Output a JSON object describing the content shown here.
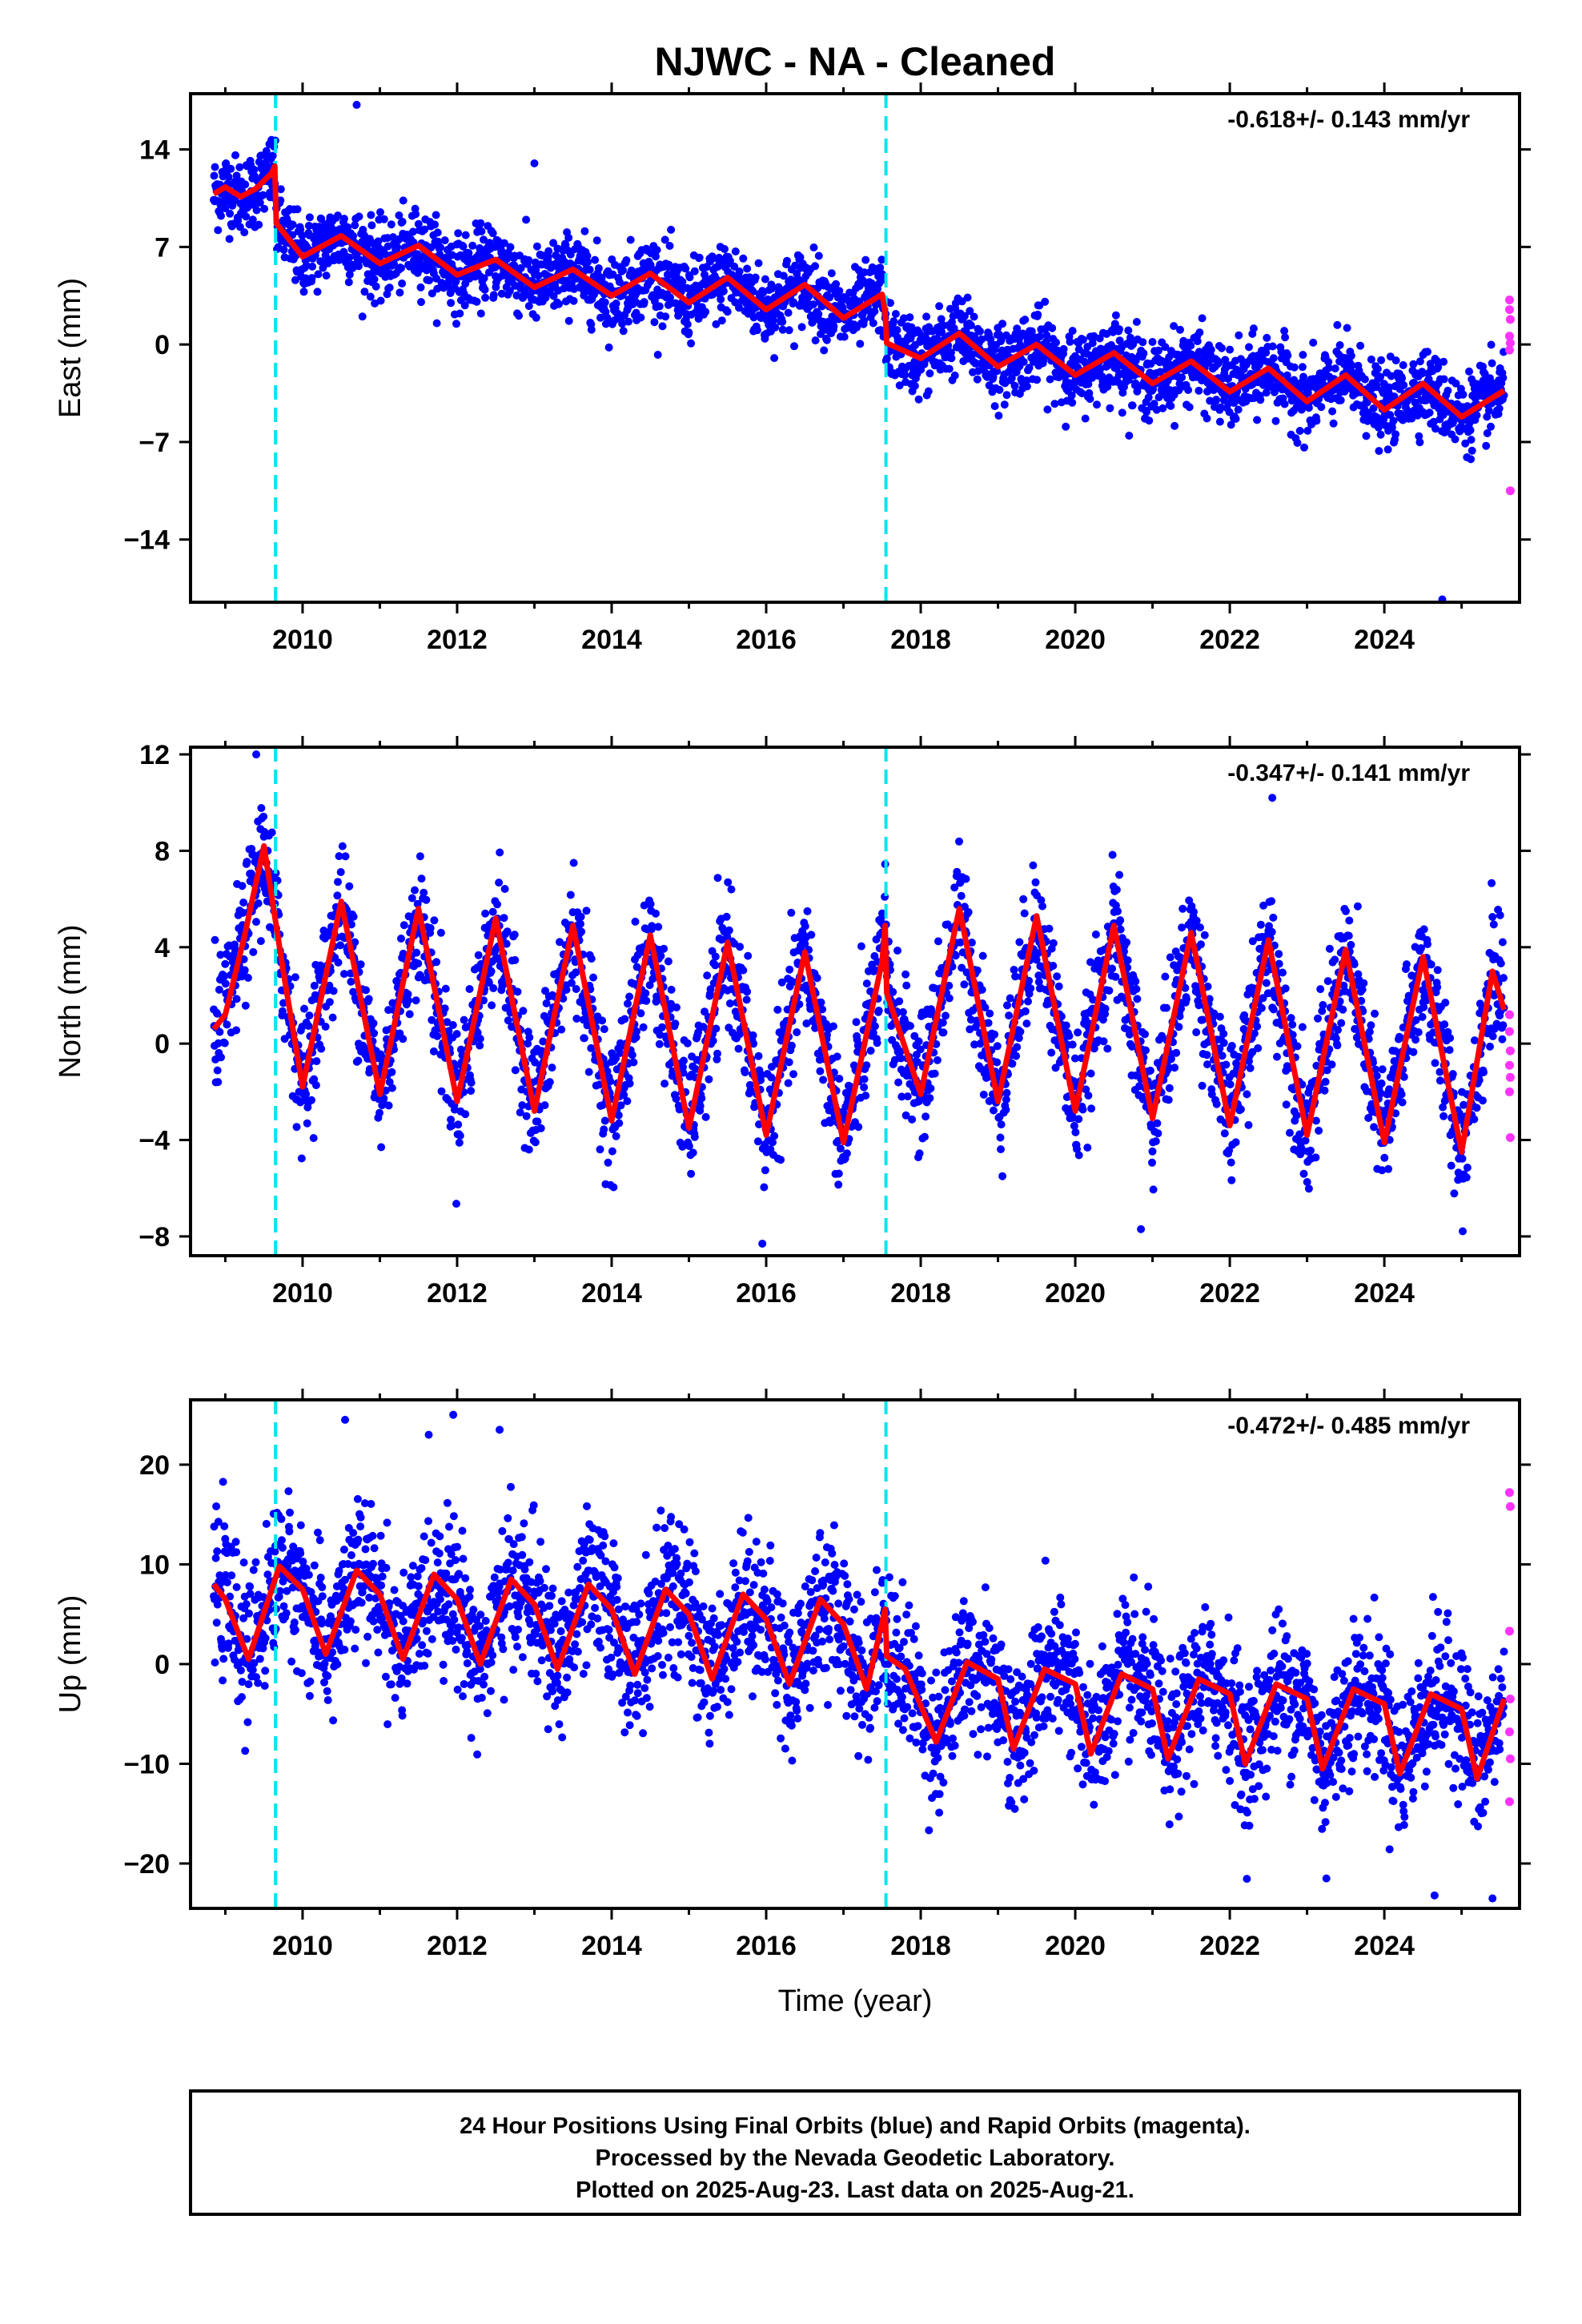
{
  "title": "NJWC  - NA - Cleaned",
  "colors": {
    "final_orbits": "#0000ff",
    "rapid_orbits": "#ff33ff",
    "model_fit": "#ff0000",
    "equipment_change": "#00e5ee",
    "frame": "#000000"
  },
  "footer": {
    "line1": "24 Hour Positions Using Final Orbits (blue) and Rapid Orbits (magenta).",
    "line2": "Processed by the Nevada Geodetic Laboratory.",
    "line3": "Plotted on 2025-Aug-23. Last data on 2025-Aug-21."
  },
  "chart_data": [
    {
      "type": "scatter",
      "component": "East",
      "ylabel": "East (mm)",
      "xlabel": "",
      "annotation": "-0.618+/- 0.143 mm/yr",
      "xlim": [
        2008.55,
        2025.75
      ],
      "ylim": [
        -18.5,
        18
      ],
      "xticks": [
        2010,
        2012,
        2014,
        2016,
        2018,
        2020,
        2022,
        2024
      ],
      "yticks": [
        -14,
        -7,
        0,
        7,
        14
      ],
      "x_range_data": [
        2008.85,
        2025.55
      ],
      "equipment_changes": [
        2009.65,
        2017.55
      ],
      "trend_rate_mm_per_yr": -0.618,
      "model_fit": {
        "x": [
          2008.85,
          2009.0,
          2009.2,
          2009.4,
          2009.6,
          2009.64,
          2009.66,
          2010.0,
          2010.5,
          2011.0,
          2011.5,
          2012.0,
          2012.5,
          2013.0,
          2013.5,
          2014.0,
          2014.5,
          2015.0,
          2015.5,
          2016.0,
          2016.5,
          2017.0,
          2017.5,
          2017.54,
          2017.56,
          2018.0,
          2018.5,
          2019.0,
          2019.5,
          2020.0,
          2020.5,
          2021.0,
          2021.5,
          2022.0,
          2022.5,
          2023.0,
          2023.5,
          2024.0,
          2024.5,
          2025.0,
          2025.55
        ],
        "y": [
          10.8,
          11.3,
          10.6,
          11.2,
          12.3,
          12.8,
          8.7,
          6.3,
          7.8,
          5.8,
          7.1,
          5.0,
          6.1,
          4.1,
          5.4,
          3.5,
          5.1,
          3.0,
          4.8,
          2.5,
          4.3,
          1.9,
          3.6,
          2.3,
          0.1,
          -1.0,
          0.8,
          -1.6,
          0.0,
          -2.2,
          -0.6,
          -2.8,
          -1.2,
          -3.4,
          -1.7,
          -4.1,
          -2.2,
          -4.7,
          -2.8,
          -5.2,
          -3.3
        ]
      },
      "rapid_orbit_points": [
        {
          "x": 2025.62,
          "y": 3.2
        },
        {
          "x": 2025.62,
          "y": 2.5
        },
        {
          "x": 2025.63,
          "y": 1.8
        },
        {
          "x": 2025.62,
          "y": 0.6
        },
        {
          "x": 2025.63,
          "y": 0.1
        },
        {
          "x": 2025.62,
          "y": -0.4
        },
        {
          "x": 2025.63,
          "y": -10.5
        }
      ],
      "outlier_points": [
        {
          "x": 2010.7,
          "y": 17.2
        },
        {
          "x": 2013.0,
          "y": 13.0
        },
        {
          "x": 2024.75,
          "y": -18.3
        }
      ]
    },
    {
      "type": "scatter",
      "component": "North",
      "ylabel": "North (mm)",
      "xlabel": "",
      "annotation": "-0.347+/- 0.141 mm/yr",
      "xlim": [
        2008.55,
        2025.75
      ],
      "ylim": [
        -8.8,
        12.3
      ],
      "xticks": [
        2010,
        2012,
        2014,
        2016,
        2018,
        2020,
        2022,
        2024
      ],
      "yticks": [
        -8,
        -4,
        0,
        4,
        8,
        12
      ],
      "x_range_data": [
        2008.85,
        2025.55
      ],
      "equipment_changes": [
        2009.65,
        2017.55
      ],
      "trend_rate_mm_per_yr": -0.347,
      "model_fit": {
        "x": [
          2008.85,
          2009.0,
          2009.25,
          2009.5,
          2009.75,
          2010.0,
          2010.5,
          2011.0,
          2011.5,
          2012.0,
          2012.5,
          2013.0,
          2013.5,
          2014.0,
          2014.5,
          2015.0,
          2015.5,
          2016.0,
          2016.5,
          2017.0,
          2017.5,
          2017.54,
          2017.56,
          2018.0,
          2018.5,
          2019.0,
          2019.5,
          2020.0,
          2020.5,
          2021.0,
          2021.5,
          2022.0,
          2022.5,
          2023.0,
          2023.5,
          2024.0,
          2024.5,
          2025.0,
          2025.4,
          2025.55
        ],
        "y": [
          0.6,
          1.2,
          4.5,
          8.2,
          3.0,
          -1.8,
          5.9,
          -2.1,
          5.6,
          -2.4,
          5.2,
          -2.8,
          4.9,
          -3.2,
          4.5,
          -3.5,
          4.2,
          -3.8,
          3.8,
          -4.1,
          3.4,
          4.9,
          2.1,
          -2.1,
          5.6,
          -2.4,
          5.3,
          -2.8,
          4.9,
          -3.1,
          4.6,
          -3.4,
          4.3,
          -3.8,
          3.9,
          -4.1,
          3.6,
          -4.5,
          3.0,
          1.4
        ]
      },
      "rapid_orbit_points": [
        {
          "x": 2025.62,
          "y": 1.2
        },
        {
          "x": 2025.62,
          "y": 0.5
        },
        {
          "x": 2025.63,
          "y": -0.3
        },
        {
          "x": 2025.62,
          "y": -0.9
        },
        {
          "x": 2025.63,
          "y": -1.4
        },
        {
          "x": 2025.62,
          "y": -2.0
        },
        {
          "x": 2025.63,
          "y": -3.9
        }
      ],
      "outlier_points": [
        {
          "x": 2009.4,
          "y": 12.0
        },
        {
          "x": 2022.55,
          "y": 10.2
        },
        {
          "x": 2015.95,
          "y": -8.3
        },
        {
          "x": 2020.85,
          "y": -7.7
        }
      ]
    },
    {
      "type": "scatter",
      "component": "Up",
      "ylabel": "Up (mm)",
      "xlabel": "Time (year)",
      "annotation": "-0.472+/- 0.485 mm/yr",
      "xlim": [
        2008.55,
        2025.75
      ],
      "ylim": [
        -24.5,
        26.5
      ],
      "xticks": [
        2010,
        2012,
        2014,
        2016,
        2018,
        2020,
        2022,
        2024
      ],
      "yticks": [
        -20,
        -10,
        0,
        10,
        20
      ],
      "x_range_data": [
        2008.85,
        2025.55
      ],
      "equipment_changes": [
        2009.65,
        2017.55
      ],
      "trend_rate_mm_per_yr": -0.472,
      "model_fit": {
        "x": [
          2008.85,
          2009.0,
          2009.3,
          2009.7,
          2010.0,
          2010.3,
          2010.7,
          2011.0,
          2011.3,
          2011.7,
          2012.0,
          2012.3,
          2012.7,
          2013.0,
          2013.3,
          2013.7,
          2014.0,
          2014.3,
          2014.7,
          2015.0,
          2015.3,
          2015.7,
          2016.0,
          2016.3,
          2016.7,
          2017.0,
          2017.3,
          2017.54,
          2017.56,
          2017.8,
          2018.2,
          2018.6,
          2019.0,
          2019.2,
          2019.6,
          2020.0,
          2020.2,
          2020.6,
          2021.0,
          2021.2,
          2021.6,
          2022.0,
          2022.2,
          2022.6,
          2023.0,
          2023.2,
          2023.6,
          2024.0,
          2024.2,
          2024.6,
          2025.0,
          2025.2,
          2025.55
        ],
        "y": [
          8.0,
          6.5,
          0.5,
          9.8,
          7.5,
          1.0,
          9.4,
          7.0,
          0.5,
          9.0,
          6.5,
          0.0,
          8.5,
          6.0,
          -0.5,
          8.0,
          5.5,
          -1.0,
          7.5,
          5.0,
          -1.5,
          7.0,
          4.5,
          -2.0,
          6.5,
          4.0,
          -2.5,
          5.5,
          0.8,
          -0.5,
          -7.8,
          0.2,
          -1.5,
          -8.5,
          -0.5,
          -2.0,
          -9.0,
          -1.0,
          -2.5,
          -9.5,
          -1.5,
          -3.0,
          -10.0,
          -2.0,
          -3.5,
          -10.5,
          -2.5,
          -4.0,
          -11.0,
          -3.0,
          -4.5,
          -11.5,
          -3.5
        ]
      },
      "rapid_orbit_points": [
        {
          "x": 2025.62,
          "y": 17.2
        },
        {
          "x": 2025.63,
          "y": 15.8
        },
        {
          "x": 2025.62,
          "y": 3.3
        },
        {
          "x": 2025.63,
          "y": -3.5
        },
        {
          "x": 2025.62,
          "y": -6.8
        },
        {
          "x": 2025.63,
          "y": -9.5
        },
        {
          "x": 2025.62,
          "y": -13.8
        }
      ],
      "outlier_points": [
        {
          "x": 2010.55,
          "y": 24.5
        },
        {
          "x": 2011.95,
          "y": 25.0
        },
        {
          "x": 2012.55,
          "y": 23.5
        },
        {
          "x": 2024.65,
          "y": -23.2
        },
        {
          "x": 2025.4,
          "y": -23.5
        },
        {
          "x": 2023.25,
          "y": -21.5
        }
      ]
    }
  ]
}
